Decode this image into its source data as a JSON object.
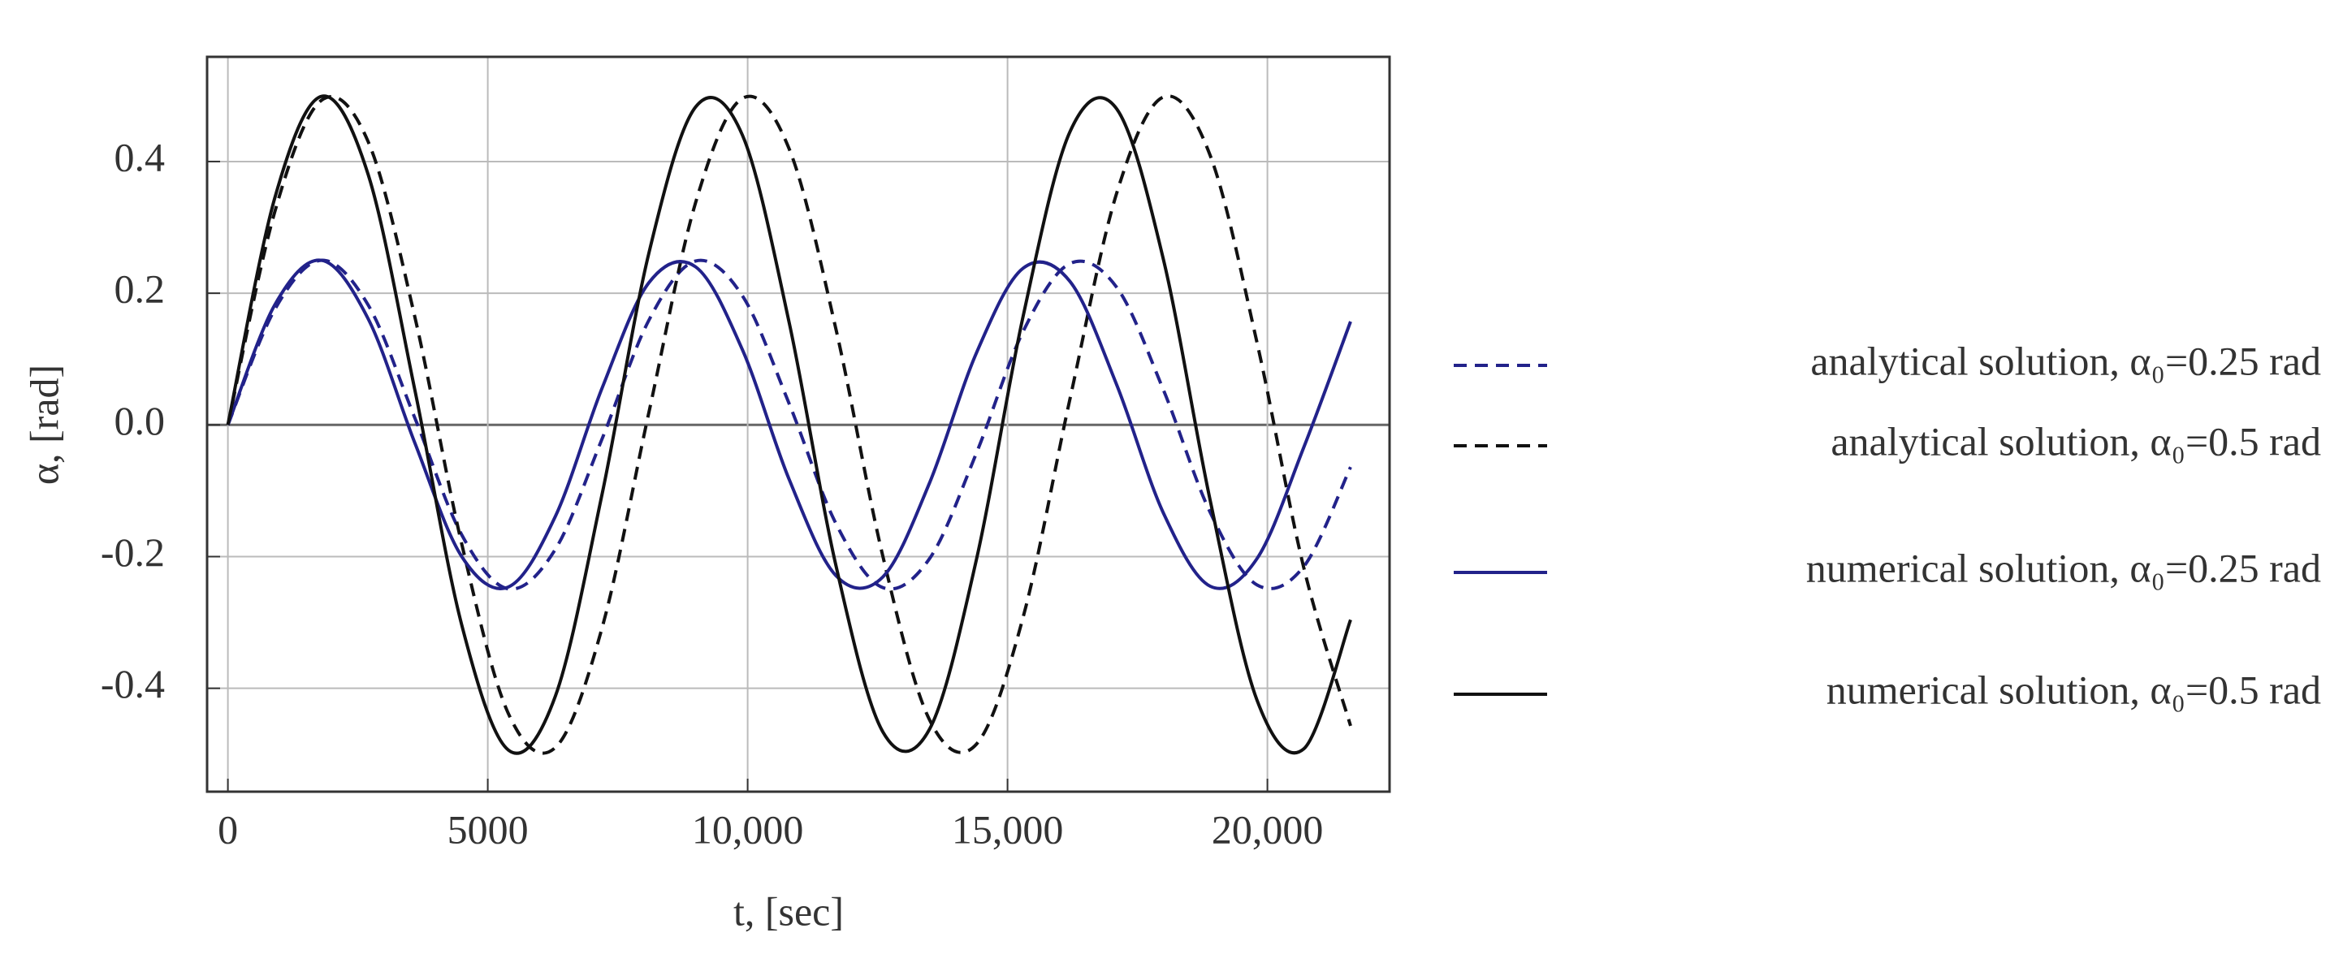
{
  "chart_data": {
    "type": "line",
    "xlabel": "t, [sec]",
    "ylabel": "α, [rad]",
    "x": [
      0,
      900,
      1800,
      2700,
      3600,
      4500,
      5400,
      6300,
      7200,
      8100,
      9000,
      9900,
      10800,
      11700,
      12600,
      13500,
      14400,
      15300,
      16200,
      17100,
      18000,
      18900,
      19800,
      20700,
      21600
    ],
    "series": [
      {
        "name": "analytical solution, α₀=0.25 rad",
        "color": "#22228a",
        "dashed": true,
        "values": [
          0,
          0.175,
          0.25,
          0.182,
          0.01,
          -0.167,
          -0.249,
          -0.189,
          -0.021,
          0.159,
          0.249,
          0.196,
          0.032,
          -0.15,
          -0.247,
          -0.203,
          -0.043,
          0.142,
          0.245,
          0.209,
          0.053,
          -0.133,
          -0.243,
          -0.215,
          -0.064
        ]
      },
      {
        "name": "analytical solution, α₀=0.5 rad",
        "color": "#111111",
        "dashed": true,
        "values": [
          0,
          0.323,
          0.493,
          0.43,
          0.163,
          -0.181,
          -0.439,
          -0.49,
          -0.308,
          0.019,
          0.338,
          0.496,
          0.419,
          0.145,
          -0.199,
          -0.448,
          -0.485,
          -0.292,
          0.039,
          0.352,
          0.498,
          0.409,
          0.125,
          -0.217,
          -0.457
        ]
      },
      {
        "name": "numerical solution, α₀=0.25 rad",
        "color": "#22228a",
        "dashed": false,
        "values": [
          0,
          0.182,
          0.25,
          0.161,
          -0.028,
          -0.2,
          -0.246,
          -0.139,
          0.056,
          0.216,
          0.24,
          0.114,
          -0.083,
          -0.229,
          -0.231,
          -0.088,
          0.109,
          0.238,
          0.218,
          0.061,
          -0.134,
          -0.245,
          -0.203,
          -0.034,
          0.157
        ]
      },
      {
        "name": "numerical solution, α₀=0.5 rad",
        "color": "#111111",
        "dashed": false,
        "values": [
          0,
          0.344,
          0.499,
          0.38,
          0.052,
          -0.304,
          -0.494,
          -0.412,
          -0.105,
          0.261,
          0.483,
          0.44,
          0.155,
          -0.214,
          -0.466,
          -0.462,
          -0.205,
          0.165,
          0.445,
          0.48,
          0.251,
          -0.115,
          -0.418,
          -0.492,
          -0.296
        ]
      }
    ],
    "xlim": [
      -400,
      22350
    ],
    "xticks": [
      0,
      5000,
      {
        "value": 10000,
        "label": "10,000"
      },
      {
        "value": 15000,
        "label": "15,000"
      },
      {
        "value": 20000,
        "label": "20,000"
      }
    ],
    "ylim": [
      -0.557,
      0.559
    ],
    "yticks": [
      -0.4,
      -0.2,
      {
        "value": 0,
        "label": "0.0"
      },
      0.2,
      0.4
    ],
    "grid": true
  }
}
